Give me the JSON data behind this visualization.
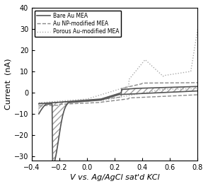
{
  "title": "",
  "xlabel": "V vs. Ag/AgCl sat'd KCl",
  "ylabel": "Current  (nA)",
  "xlim": [
    -0.4,
    0.8
  ],
  "ylim": [
    -32,
    40
  ],
  "xticks": [
    -0.4,
    -0.2,
    0.0,
    0.2,
    0.4,
    0.6,
    0.8
  ],
  "yticks": [
    -30,
    -20,
    -10,
    0,
    10,
    20,
    30,
    40
  ],
  "legend_labels": [
    "Bare Au MEA",
    "Au NP-modified MEA",
    "Porous Au-modified MEA"
  ],
  "bare_au_color": "#555555",
  "au_np_color": "#888888",
  "porous_au_color": "#aaaaaa",
  "hatch_color": "#888888",
  "background_color": "#ffffff"
}
